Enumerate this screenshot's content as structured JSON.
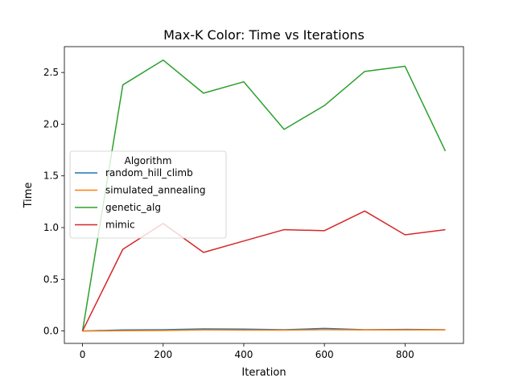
{
  "chart_data": {
    "type": "line",
    "title": "Max-K Color: Time vs Iterations",
    "xlabel": "Iteration",
    "ylabel": "Time",
    "x": [
      0,
      100,
      200,
      300,
      400,
      500,
      600,
      700,
      800,
      900
    ],
    "xlim": [
      -45,
      945
    ],
    "ylim": [
      -0.12,
      2.75
    ],
    "xticks": [
      0,
      200,
      400,
      600,
      800
    ],
    "yticks": [
      0.0,
      0.5,
      1.0,
      1.5,
      2.0,
      2.5
    ],
    "ytick_labels": [
      "0.0",
      "0.5",
      "1.0",
      "1.5",
      "2.0",
      "2.5"
    ],
    "grid": false,
    "legend": {
      "title": "Algorithm",
      "placement": "center-left"
    },
    "series": [
      {
        "name": "random_hill_climb",
        "color": "#1f77b4",
        "values": [
          0.0,
          0.01,
          0.012,
          0.02,
          0.018,
          0.012,
          0.025,
          0.012,
          0.015,
          0.012
        ]
      },
      {
        "name": "simulated_annealing",
        "color": "#ff7f0e",
        "values": [
          0.0,
          0.002,
          0.004,
          0.01,
          0.008,
          0.008,
          0.012,
          0.01,
          0.01,
          0.01
        ]
      },
      {
        "name": "genetic_alg",
        "color": "#2ca02c",
        "values": [
          0.0,
          2.38,
          2.62,
          2.3,
          2.41,
          1.95,
          2.18,
          2.51,
          2.56,
          1.74
        ]
      },
      {
        "name": "mimic",
        "color": "#d62728",
        "values": [
          0.0,
          0.79,
          1.04,
          0.76,
          0.87,
          0.98,
          0.97,
          1.16,
          0.93,
          0.98
        ]
      }
    ]
  }
}
